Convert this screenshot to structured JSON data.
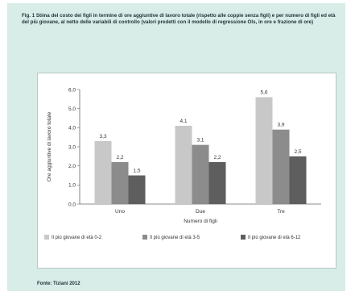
{
  "figure": {
    "title": "Fig. 1 Stima del costo dei figli in termine di ore aggiuntive di lavoro totale (rispetto alle coppie senza figli) e per numero di figli ed età del più giovane, al netto delle variabili di controllo (valori predetti con il modello di regressione Ols, in ore e frazione di ore)",
    "source": "Fonte: Tiziani 2012"
  },
  "chart_data": {
    "type": "bar",
    "categories": [
      "Uno",
      "Due",
      "Tre"
    ],
    "series": [
      {
        "name": "Il più giovane di età 0-2",
        "values": [
          3.3,
          4.1,
          5.6
        ],
        "color": "#c8c8c8"
      },
      {
        "name": "Il più giovane di età 3-5",
        "values": [
          2.2,
          3.1,
          3.9
        ],
        "color": "#8c8c8c"
      },
      {
        "name": "Il più giovane di età 6-12",
        "values": [
          1.5,
          2.2,
          2.5
        ],
        "color": "#5e5e5e"
      }
    ],
    "data_labels": [
      [
        "3,3",
        "2,2",
        "1,5"
      ],
      [
        "4,1",
        "3,1",
        "2,2"
      ],
      [
        "5,6",
        "3,9",
        "2,5"
      ]
    ],
    "yticks": [
      "0,0",
      "1,0",
      "2,0",
      "3,0",
      "4,0",
      "5,0",
      "6,0"
    ],
    "ylim": [
      0,
      6
    ],
    "xlabel": "Numero di figli",
    "ylabel": "Ore aggiuntive di lavoro totale",
    "grid": false,
    "legend_position": "bottom"
  }
}
